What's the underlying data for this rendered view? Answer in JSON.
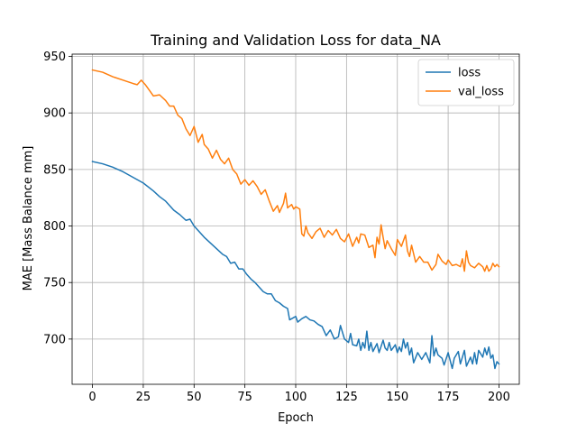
{
  "chart_data": {
    "type": "line",
    "title": "Training and Validation Loss for data_NA",
    "xlabel": "Epoch",
    "ylabel": "MAE [Mass Balance mm]",
    "xlim": [
      -10,
      210
    ],
    "ylim": [
      660,
      952
    ],
    "x_ticks": [
      0,
      25,
      50,
      75,
      100,
      125,
      150,
      175,
      200
    ],
    "y_ticks": [
      700,
      750,
      800,
      850,
      900,
      950
    ],
    "grid": true,
    "legend_position": "top-right",
    "series": [
      {
        "name": "loss",
        "color": "#1f77b4",
        "points": [
          [
            0,
            857
          ],
          [
            5,
            855
          ],
          [
            10,
            852
          ],
          [
            15,
            848
          ],
          [
            20,
            843
          ],
          [
            25,
            838
          ],
          [
            30,
            831
          ],
          [
            33,
            826
          ],
          [
            36,
            822
          ],
          [
            40,
            814
          ],
          [
            43,
            810
          ],
          [
            46,
            805
          ],
          [
            48,
            806
          ],
          [
            50,
            800
          ],
          [
            52,
            796
          ],
          [
            55,
            790
          ],
          [
            58,
            785
          ],
          [
            61,
            780
          ],
          [
            64,
            775
          ],
          [
            66,
            773
          ],
          [
            68,
            767
          ],
          [
            70,
            768
          ],
          [
            72,
            762
          ],
          [
            74,
            762
          ],
          [
            76,
            757
          ],
          [
            78,
            753
          ],
          [
            80,
            750
          ],
          [
            82,
            746
          ],
          [
            84,
            742
          ],
          [
            86,
            740
          ],
          [
            88,
            740
          ],
          [
            90,
            734
          ],
          [
            92,
            732
          ],
          [
            94,
            729
          ],
          [
            96,
            727
          ],
          [
            97,
            717
          ],
          [
            99,
            719
          ],
          [
            100,
            720
          ],
          [
            101,
            715
          ],
          [
            103,
            718
          ],
          [
            105,
            720
          ],
          [
            107,
            717
          ],
          [
            109,
            716
          ],
          [
            111,
            713
          ],
          [
            113,
            711
          ],
          [
            115,
            703
          ],
          [
            117,
            708
          ],
          [
            119,
            700
          ],
          [
            121,
            702
          ],
          [
            122,
            712
          ],
          [
            124,
            700
          ],
          [
            126,
            697
          ],
          [
            127,
            705
          ],
          [
            128,
            695
          ],
          [
            130,
            694
          ],
          [
            131,
            700
          ],
          [
            132,
            690
          ],
          [
            133,
            697
          ],
          [
            134,
            692
          ],
          [
            135,
            707
          ],
          [
            136,
            690
          ],
          [
            137,
            697
          ],
          [
            138,
            689
          ],
          [
            140,
            696
          ],
          [
            141,
            688
          ],
          [
            143,
            699
          ],
          [
            144,
            692
          ],
          [
            145,
            690
          ],
          [
            146,
            697
          ],
          [
            147,
            690
          ],
          [
            149,
            695
          ],
          [
            150,
            688
          ],
          [
            151,
            693
          ],
          [
            152,
            689
          ],
          [
            153,
            700
          ],
          [
            154,
            692
          ],
          [
            155,
            697
          ],
          [
            156,
            686
          ],
          [
            157,
            692
          ],
          [
            158,
            679
          ],
          [
            160,
            688
          ],
          [
            162,
            682
          ],
          [
            164,
            688
          ],
          [
            166,
            679
          ],
          [
            167,
            703
          ],
          [
            168,
            685
          ],
          [
            169,
            692
          ],
          [
            170,
            686
          ],
          [
            172,
            683
          ],
          [
            173,
            677
          ],
          [
            175,
            688
          ],
          [
            176,
            681
          ],
          [
            177,
            674
          ],
          [
            178,
            683
          ],
          [
            180,
            689
          ],
          [
            181,
            678
          ],
          [
            182,
            684
          ],
          [
            183,
            690
          ],
          [
            184,
            676
          ],
          [
            186,
            684
          ],
          [
            187,
            678
          ],
          [
            188,
            688
          ],
          [
            189,
            678
          ],
          [
            190,
            690
          ],
          [
            192,
            684
          ],
          [
            193,
            692
          ],
          [
            194,
            686
          ],
          [
            195,
            693
          ],
          [
            196,
            683
          ],
          [
            197,
            686
          ],
          [
            198,
            674
          ],
          [
            199,
            680
          ],
          [
            200,
            678
          ]
        ]
      },
      {
        "name": "val_loss",
        "color": "#ff7f0e",
        "points": [
          [
            0,
            938
          ],
          [
            5,
            936
          ],
          [
            10,
            932
          ],
          [
            15,
            929
          ],
          [
            20,
            926
          ],
          [
            22,
            925
          ],
          [
            24,
            929
          ],
          [
            26,
            925
          ],
          [
            28,
            920
          ],
          [
            30,
            915
          ],
          [
            33,
            916
          ],
          [
            36,
            911
          ],
          [
            38,
            906
          ],
          [
            40,
            906
          ],
          [
            42,
            898
          ],
          [
            44,
            895
          ],
          [
            46,
            886
          ],
          [
            48,
            880
          ],
          [
            50,
            888
          ],
          [
            52,
            874
          ],
          [
            54,
            881
          ],
          [
            55,
            872
          ],
          [
            57,
            868
          ],
          [
            59,
            860
          ],
          [
            61,
            867
          ],
          [
            63,
            859
          ],
          [
            65,
            855
          ],
          [
            67,
            860
          ],
          [
            69,
            850
          ],
          [
            71,
            846
          ],
          [
            73,
            837
          ],
          [
            75,
            841
          ],
          [
            77,
            836
          ],
          [
            79,
            840
          ],
          [
            81,
            835
          ],
          [
            83,
            828
          ],
          [
            85,
            832
          ],
          [
            87,
            822
          ],
          [
            89,
            813
          ],
          [
            91,
            818
          ],
          [
            92,
            812
          ],
          [
            94,
            820
          ],
          [
            95,
            829
          ],
          [
            96,
            816
          ],
          [
            98,
            819
          ],
          [
            99,
            815
          ],
          [
            100,
            817
          ],
          [
            102,
            815
          ],
          [
            103,
            793
          ],
          [
            104,
            791
          ],
          [
            105,
            800
          ],
          [
            106,
            794
          ],
          [
            108,
            789
          ],
          [
            110,
            795
          ],
          [
            112,
            798
          ],
          [
            114,
            790
          ],
          [
            116,
            796
          ],
          [
            118,
            792
          ],
          [
            120,
            797
          ],
          [
            122,
            789
          ],
          [
            124,
            786
          ],
          [
            126,
            793
          ],
          [
            128,
            782
          ],
          [
            130,
            790
          ],
          [
            131,
            785
          ],
          [
            132,
            793
          ],
          [
            134,
            792
          ],
          [
            136,
            781
          ],
          [
            138,
            783
          ],
          [
            139,
            772
          ],
          [
            140,
            790
          ],
          [
            141,
            784
          ],
          [
            142,
            801
          ],
          [
            143,
            790
          ],
          [
            144,
            780
          ],
          [
            145,
            787
          ],
          [
            147,
            780
          ],
          [
            149,
            774
          ],
          [
            150,
            788
          ],
          [
            152,
            782
          ],
          [
            154,
            792
          ],
          [
            155,
            778
          ],
          [
            156,
            773
          ],
          [
            157,
            783
          ],
          [
            159,
            768
          ],
          [
            161,
            773
          ],
          [
            163,
            768
          ],
          [
            165,
            768
          ],
          [
            167,
            761
          ],
          [
            169,
            766
          ],
          [
            170,
            775
          ],
          [
            172,
            769
          ],
          [
            174,
            766
          ],
          [
            175,
            770
          ],
          [
            177,
            765
          ],
          [
            179,
            766
          ],
          [
            181,
            764
          ],
          [
            182,
            771
          ],
          [
            183,
            760
          ],
          [
            184,
            778
          ],
          [
            185,
            768
          ],
          [
            186,
            765
          ],
          [
            188,
            763
          ],
          [
            190,
            767
          ],
          [
            192,
            764
          ],
          [
            193,
            760
          ],
          [
            194,
            765
          ],
          [
            195,
            760
          ],
          [
            196,
            762
          ],
          [
            197,
            767
          ],
          [
            198,
            764
          ],
          [
            199,
            766
          ],
          [
            200,
            764
          ]
        ]
      }
    ]
  }
}
